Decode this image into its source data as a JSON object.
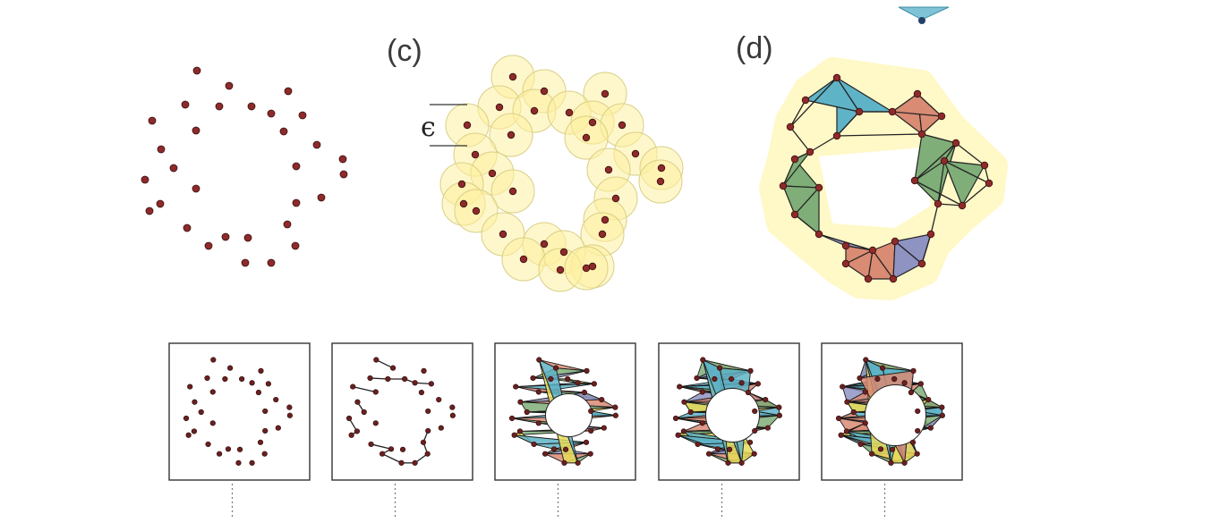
{
  "panels": {
    "c_label": "(c)",
    "d_label": "(d)",
    "epsilon_symbol": "ϵ"
  },
  "colors": {
    "point": "#8e2a2a",
    "ball": "#fdf0a0",
    "tri_blue": "#5fb3c6",
    "tri_red": "#d98b74",
    "tri_green": "#7fae78",
    "tri_purple": "#8f93c2",
    "tri_yellow": "#e8dc5a",
    "halo": "#fff39a"
  }
}
